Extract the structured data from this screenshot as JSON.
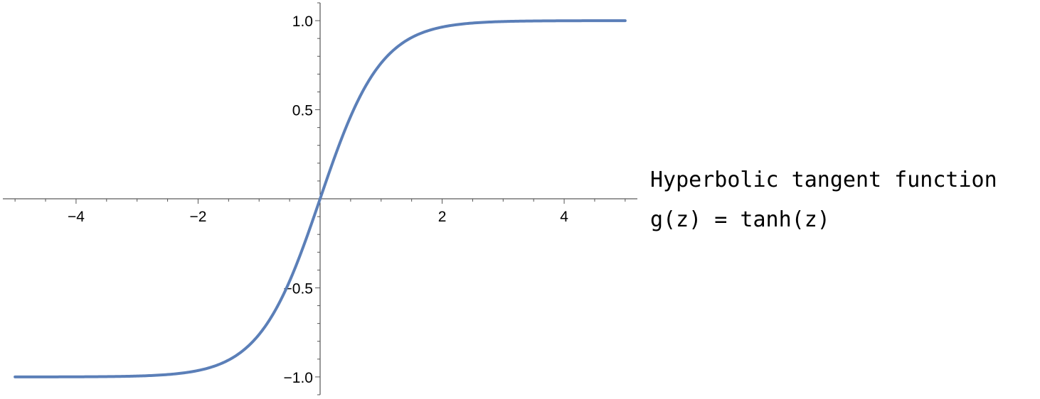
{
  "chart_data": {
    "type": "line",
    "function": "tanh",
    "series": [
      {
        "color": "#5b7fb8",
        "x": [
          -5,
          -4.5,
          -4,
          -3.5,
          -3,
          -2.5,
          -2,
          -1.75,
          -1.5,
          -1.25,
          -1,
          -0.75,
          -0.5,
          -0.25,
          0,
          0.25,
          0.5,
          0.75,
          1,
          1.25,
          1.5,
          1.75,
          2,
          2.5,
          3,
          3.5,
          4,
          4.5,
          5
        ],
        "y": [
          -0.9999,
          -0.9998,
          -0.9993,
          -0.9982,
          -0.9951,
          -0.9866,
          -0.964,
          -0.9414,
          -0.9051,
          -0.8483,
          -0.7616,
          -0.6351,
          -0.4621,
          -0.2449,
          0,
          0.2449,
          0.4621,
          0.6351,
          0.7616,
          0.8483,
          0.9051,
          0.9414,
          0.964,
          0.9866,
          0.9951,
          0.9982,
          0.9993,
          0.9998,
          0.9999
        ]
      }
    ],
    "xlim": [
      -5.2,
      5.2
    ],
    "ylim": [
      -1.1,
      1.1
    ],
    "x_ticks": [
      -4,
      -2,
      2,
      4
    ],
    "x_tick_labels": [
      "−4",
      "−2",
      "2",
      "4"
    ],
    "y_ticks": [
      -1.0,
      -0.5,
      0.5,
      1.0
    ],
    "y_tick_labels": [
      "−1.0",
      "−0.5",
      "0.5",
      "1.0"
    ],
    "grid": false,
    "axes_style": "centered at origin",
    "annotation": {
      "line1": "Hyperbolic tangent function",
      "line2": "g(z) = tanh(z)"
    }
  }
}
